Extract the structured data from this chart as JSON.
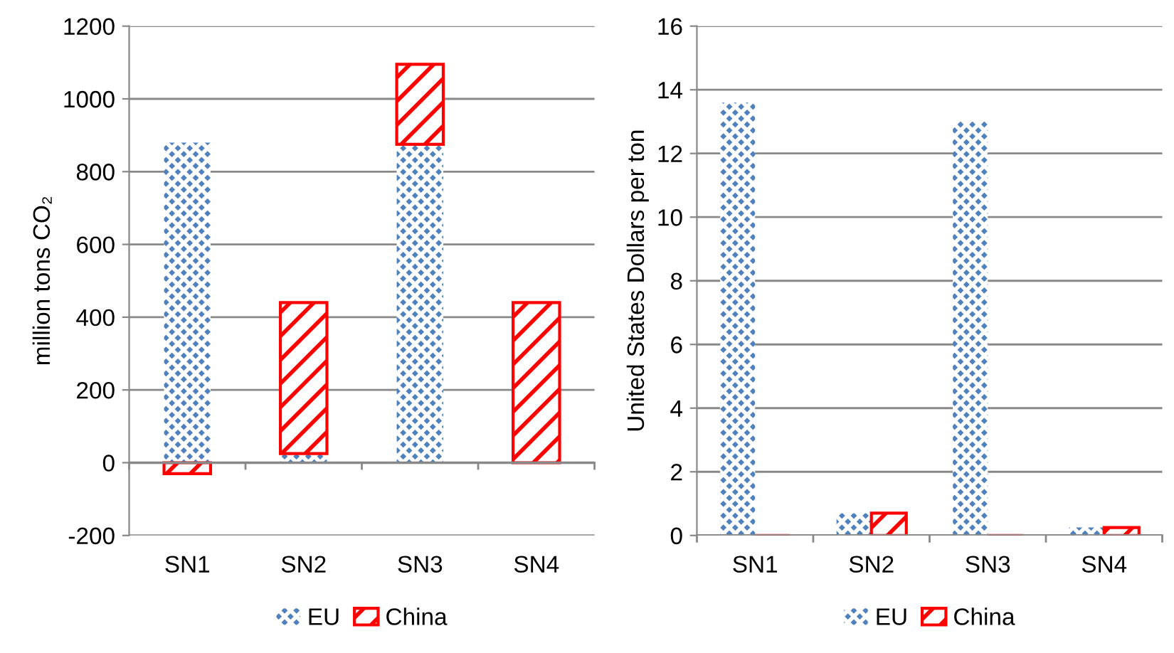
{
  "chart_data": [
    {
      "type": "bar",
      "stacked": true,
      "ylabel": "million tons CO₂",
      "categories": [
        "SN1",
        "SN2",
        "SN3",
        "SN4"
      ],
      "series": [
        {
          "name": "EU",
          "color": "#4f81bd",
          "values": [
            880,
            25,
            875,
            0
          ]
        },
        {
          "name": "China",
          "color": "#ff0000",
          "values": [
            -30,
            415,
            220,
            440
          ]
        }
      ],
      "ylim": [
        -200,
        1200
      ],
      "yticks": [
        -200,
        0,
        200,
        400,
        600,
        800,
        1000,
        1200
      ],
      "grid": "y",
      "legend": "bottom"
    },
    {
      "type": "bar",
      "ylabel": "United States Dollars per ton",
      "categories": [
        "SN1",
        "SN2",
        "SN3",
        "SN4"
      ],
      "series": [
        {
          "name": "EU",
          "color": "#4f81bd",
          "values": [
            13.6,
            0.7,
            13.0,
            0.25
          ]
        },
        {
          "name": "China",
          "color": "#ff0000",
          "values": [
            0,
            0.7,
            0,
            0.25
          ]
        }
      ],
      "ylim": [
        0,
        16
      ],
      "yticks": [
        0,
        2,
        4,
        6,
        8,
        10,
        12,
        14,
        16
      ],
      "grid": "y",
      "legend": "bottom"
    }
  ]
}
